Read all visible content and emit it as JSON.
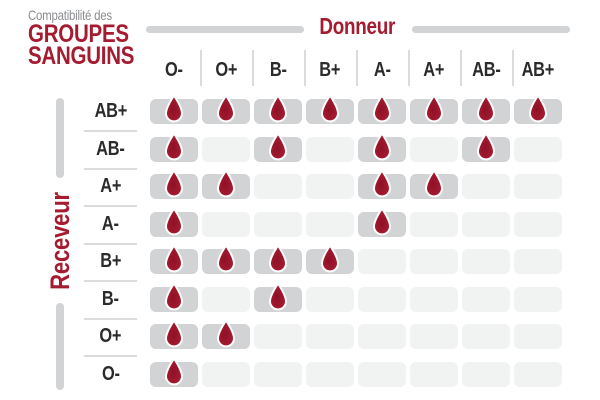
{
  "header": {
    "subtitle": "Compatibilité des",
    "title_line1": "GROUPES",
    "title_line2": "SANGUINS",
    "donor_axis_label": "Donneur",
    "receiver_axis_label": "Receveur"
  },
  "chart_data": {
    "type": "heatmap",
    "title": "Compatibilité des groupes sanguins",
    "x_axis_label": "Donneur",
    "y_axis_label": "Receveur",
    "donors": [
      "O-",
      "O+",
      "B-",
      "B+",
      "A-",
      "A+",
      "AB-",
      "AB+"
    ],
    "receivers": [
      "AB+",
      "AB-",
      "A+",
      "A-",
      "B+",
      "B-",
      "O+",
      "O-"
    ],
    "marker": "blood-drop-icon",
    "legend": "1 = compatible (blood drop shown), 0 = not compatible",
    "matrix": [
      [
        1,
        1,
        1,
        1,
        1,
        1,
        1,
        1
      ],
      [
        1,
        0,
        1,
        0,
        1,
        0,
        1,
        0
      ],
      [
        1,
        1,
        0,
        0,
        1,
        1,
        0,
        0
      ],
      [
        1,
        0,
        0,
        0,
        1,
        0,
        0,
        0
      ],
      [
        1,
        1,
        1,
        1,
        0,
        0,
        0,
        0
      ],
      [
        1,
        0,
        1,
        0,
        0,
        0,
        0,
        0
      ],
      [
        1,
        1,
        0,
        0,
        0,
        0,
        0,
        0
      ],
      [
        1,
        0,
        0,
        0,
        0,
        0,
        0,
        0
      ]
    ]
  },
  "colors": {
    "accent_red": "#A51B30",
    "drop_red": "#AE1D33",
    "drop_red_dark": "#8E1126",
    "cell_filled": "#D1D3D4",
    "cell_empty": "#F1F2F2",
    "axis_line": "#D1D3D4",
    "separator": "#DADBDC",
    "text_dark": "#2B2B2B",
    "text_gray": "#8B8D90",
    "background": "#FFFFFF"
  }
}
